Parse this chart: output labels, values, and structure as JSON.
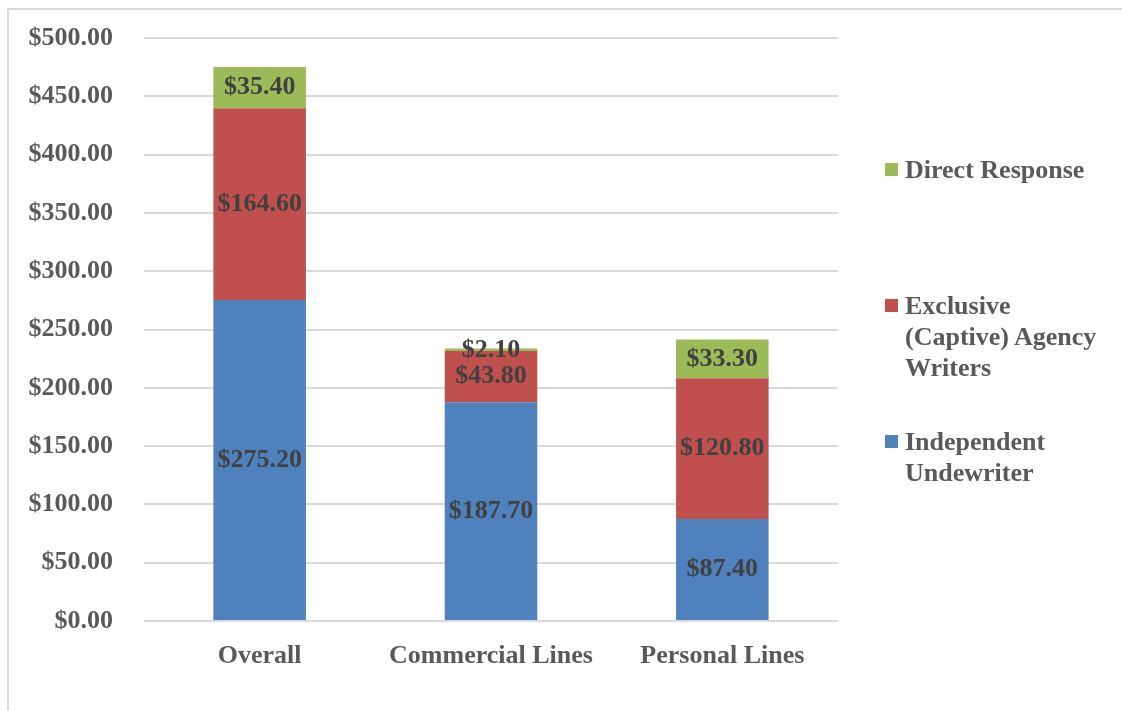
{
  "chart_data": {
    "type": "bar",
    "stacked": true,
    "categories": [
      "Overall",
      "Commercial Lines",
      "Personal Lines"
    ],
    "series": [
      {
        "name": "Independent Undewriter",
        "color": "#4f81bd",
        "values": [
          275.2,
          187.7,
          87.4
        ],
        "value_labels": [
          "$275.20",
          "$187.70",
          "$87.40"
        ]
      },
      {
        "name": "Exclusive (Captive) Agency Writers",
        "color": "#c0504d",
        "values": [
          164.6,
          43.8,
          120.8
        ],
        "value_labels": [
          "$164.60",
          "$43.80",
          "$120.80"
        ]
      },
      {
        "name": "Direct Response",
        "color": "#9bbb59",
        "values": [
          35.4,
          2.1,
          33.3
        ],
        "value_labels": [
          "$35.40",
          "$2.10",
          "$33.30"
        ]
      }
    ],
    "ylim": [
      0,
      500
    ],
    "yticks": [
      {
        "value": 0,
        "label": "$0.00"
      },
      {
        "value": 50,
        "label": "$50.00"
      },
      {
        "value": 100,
        "label": "$100.00"
      },
      {
        "value": 150,
        "label": "$150.00"
      },
      {
        "value": 200,
        "label": "$200.00"
      },
      {
        "value": 250,
        "label": "$250.00"
      },
      {
        "value": 300,
        "label": "$300.00"
      },
      {
        "value": 350,
        "label": "$350.00"
      },
      {
        "value": 400,
        "label": "$400.00"
      },
      {
        "value": 450,
        "label": "$450.00"
      },
      {
        "value": 500,
        "label": "$500.00"
      }
    ],
    "grid": "y",
    "legend": "right"
  }
}
